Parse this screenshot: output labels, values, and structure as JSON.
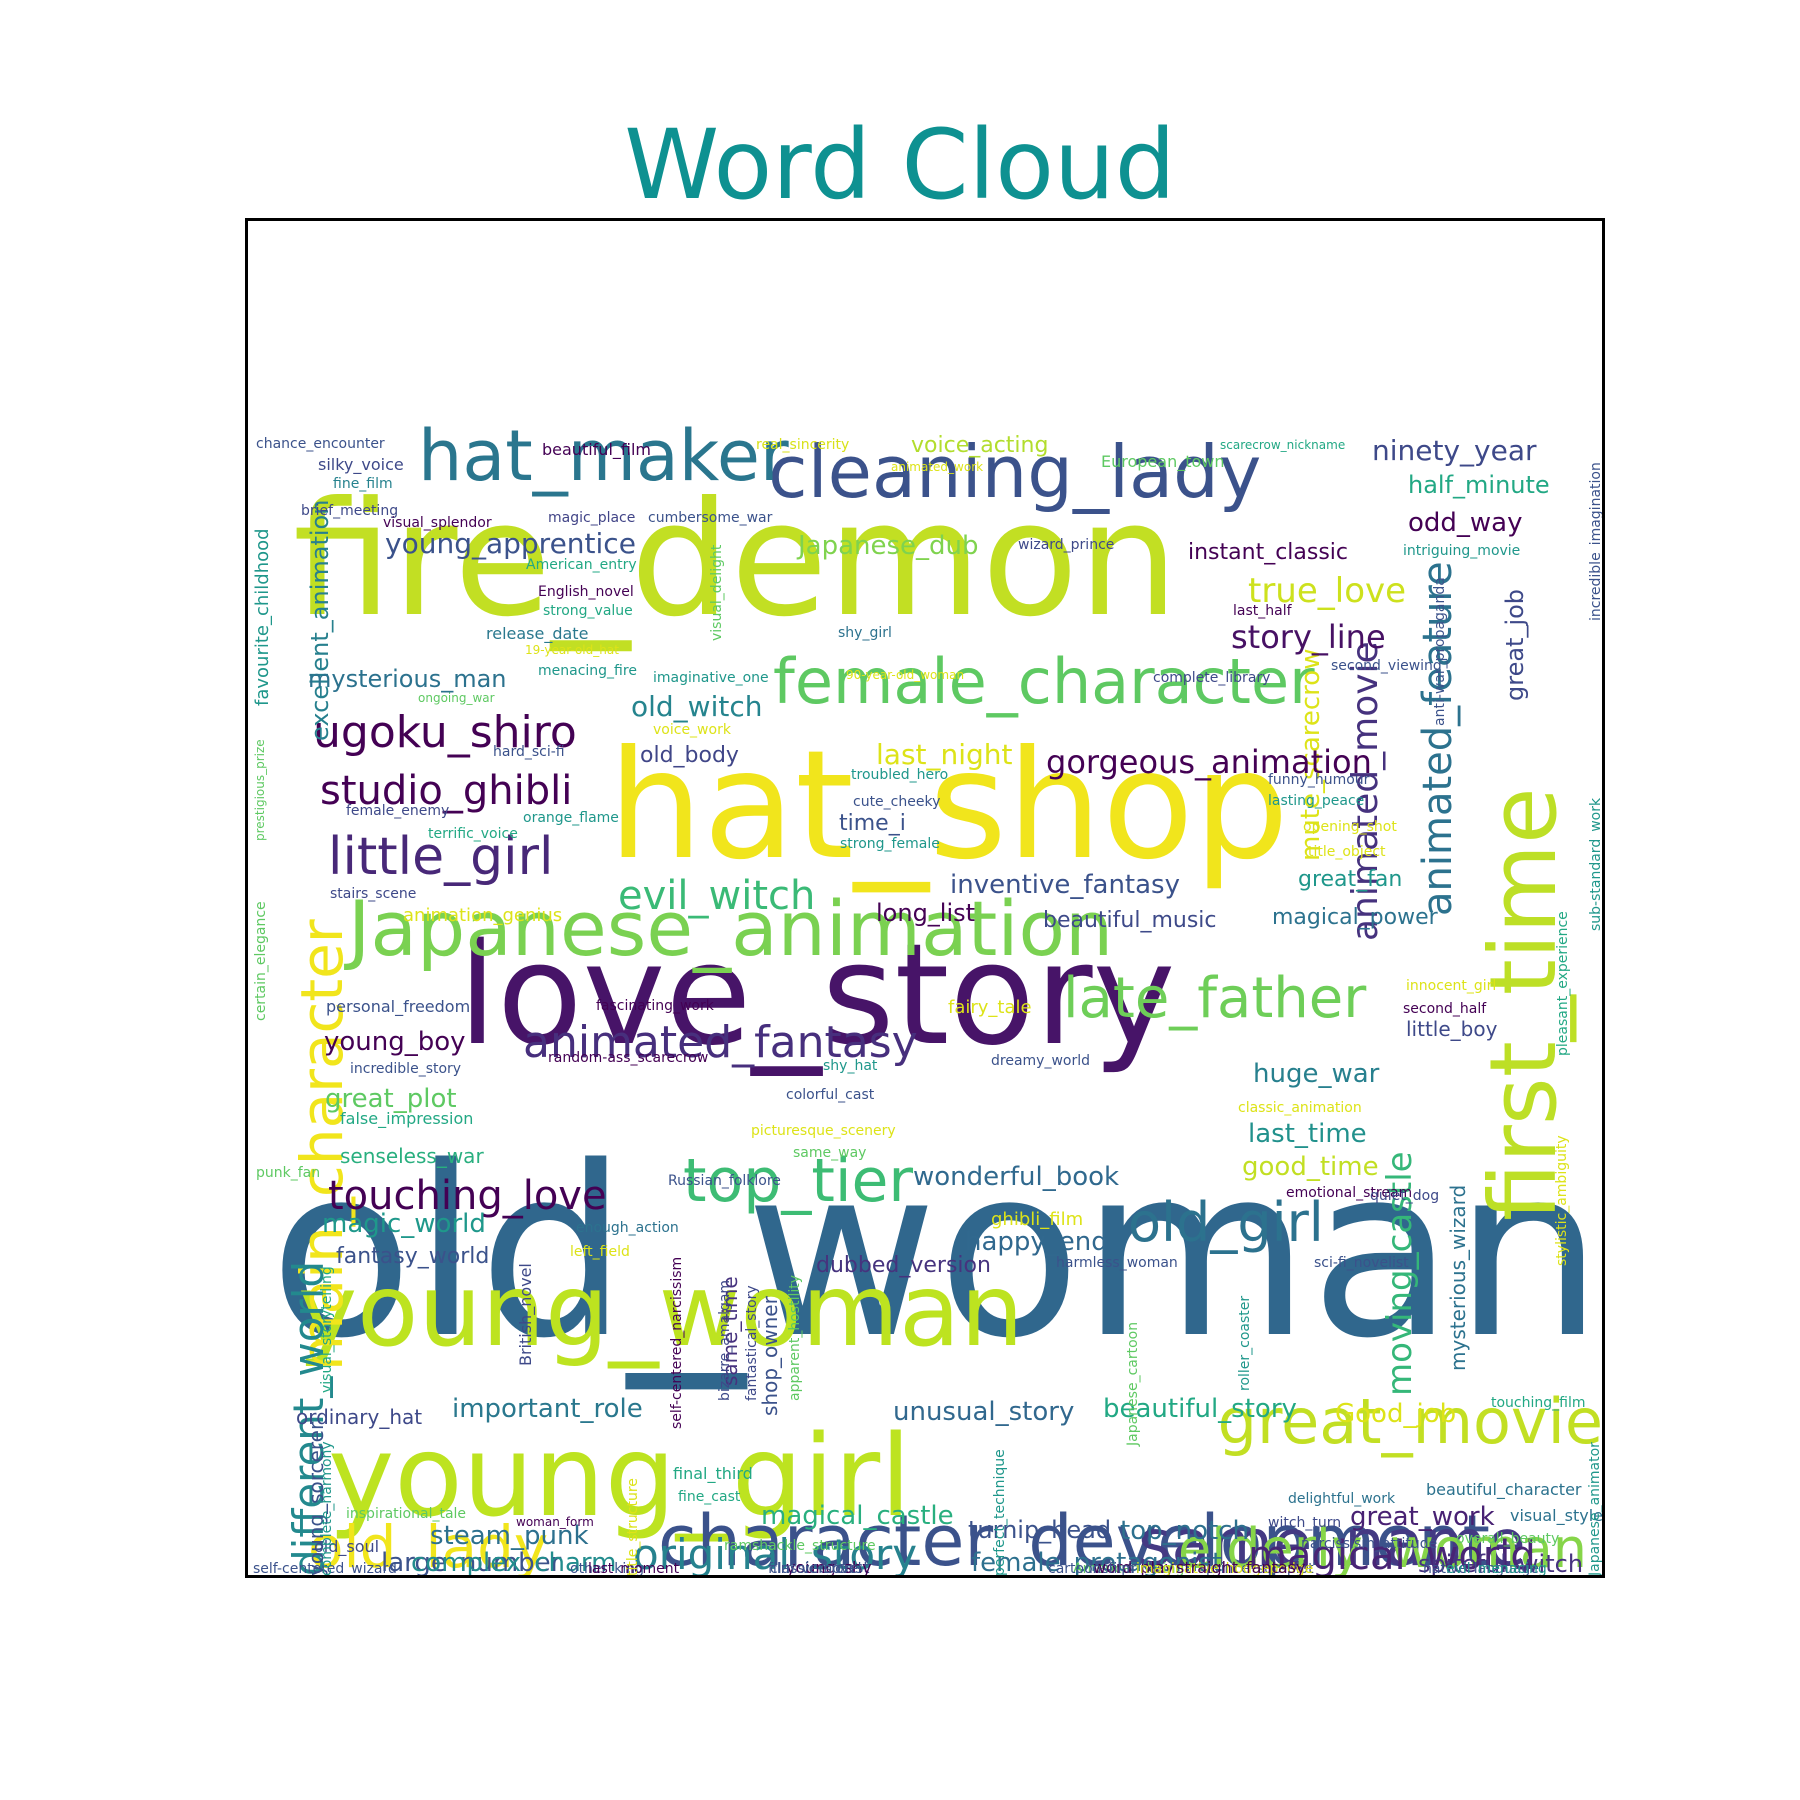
{
  "chart_data": {
    "type": "wordcloud",
    "title": "Word Cloud",
    "words": [
      {
        "text": "old_woman",
        "color": "#30678d"
      },
      {
        "text": "love_story",
        "color": "#471468"
      },
      {
        "text": "fire_demon",
        "color": "#c2df23"
      },
      {
        "text": "hat_shop",
        "color": "#f1e51c"
      },
      {
        "text": "young_woman",
        "color": "#bde320"
      },
      {
        "text": "young_girl",
        "color": "#bde320"
      },
      {
        "text": "Japanese_animation",
        "color": "#7ad151"
      },
      {
        "text": "first_time",
        "color": "#bddf26"
      },
      {
        "text": "cleaning_lady",
        "color": "#3b528b"
      },
      {
        "text": "character_development",
        "color": "#3b528b"
      },
      {
        "text": "main_character",
        "color": "#f1e51c"
      },
      {
        "text": "hat_maker",
        "color": "#2a768e"
      },
      {
        "text": "female_character",
        "color": "#5ec962"
      },
      {
        "text": "great_movie",
        "color": "#c2df23"
      },
      {
        "text": "same_name",
        "color": "#443983"
      },
      {
        "text": "elderly_woman",
        "color": "#86d549"
      },
      {
        "text": "old_lady",
        "color": "#f1e51c"
      },
      {
        "text": "top_tier",
        "color": "#3dbc74"
      },
      {
        "text": "late_father",
        "color": "#6ece58"
      },
      {
        "text": "old_girl",
        "color": "#2c728e"
      },
      {
        "text": "animated_feature",
        "color": "#2c728e"
      },
      {
        "text": "little_girl",
        "color": "#482878"
      },
      {
        "text": "animated_fantasy",
        "color": "#472f7d"
      },
      {
        "text": "different_world",
        "color": "#23898e"
      },
      {
        "text": "ugoku_shiro",
        "color": "#440154"
      },
      {
        "text": "studio_ghibli",
        "color": "#440154"
      },
      {
        "text": "original_story",
        "color": "#26828e"
      },
      {
        "text": "magical_world",
        "color": "#482475"
      },
      {
        "text": "evil_witch",
        "color": "#3aba76"
      },
      {
        "text": "touching_love",
        "color": "#440154"
      },
      {
        "text": "animated_movie",
        "color": "#46327e"
      },
      {
        "text": "moving_castle",
        "color": "#35b779"
      },
      {
        "text": "excellent_animation",
        "color": "#27808e"
      },
      {
        "text": "mute_scarecrow",
        "color": "#dde318"
      },
      {
        "text": "gorgeous_animation",
        "color": "#440154"
      },
      {
        "text": "true_love",
        "color": "#cde11d"
      },
      {
        "text": "young_apprentice",
        "color": "#3b528b"
      },
      {
        "text": "story_line",
        "color": "#471164"
      },
      {
        "text": "ninety_year",
        "color": "#3e4989"
      },
      {
        "text": "old_witch",
        "color": "#25848e"
      },
      {
        "text": "inventive_fantasy",
        "color": "#3b528b"
      },
      {
        "text": "last_night",
        "color": "#dde318"
      },
      {
        "text": "Japanese_dub",
        "color": "#7fd34e"
      },
      {
        "text": "important_role",
        "color": "#2a788e"
      },
      {
        "text": "unusual_story",
        "color": "#31688e"
      },
      {
        "text": "beautiful_story",
        "color": "#22a884"
      },
      {
        "text": "Good_job",
        "color": "#dde318"
      },
      {
        "text": "magic_world",
        "color": "#1f988b"
      },
      {
        "text": "great_plot",
        "color": "#5ec962"
      },
      {
        "text": "young_boy",
        "color": "#440154"
      },
      {
        "text": "huge_war",
        "color": "#27808e"
      },
      {
        "text": "last_time",
        "color": "#21918c"
      },
      {
        "text": "good_time",
        "color": "#c2df23"
      },
      {
        "text": "happy_end",
        "color": "#31688e"
      },
      {
        "text": "wonderful_book",
        "color": "#30698e"
      },
      {
        "text": "steam_punk",
        "color": "#2d708e"
      },
      {
        "text": "magical_castle",
        "color": "#29af7f"
      },
      {
        "text": "top_notch",
        "color": "#2d708e"
      },
      {
        "text": "great_work",
        "color": "#482173"
      },
      {
        "text": "spiteful_witch",
        "color": "#46337f"
      },
      {
        "text": "large_number",
        "color": "#3b528b"
      },
      {
        "text": "complex_charm",
        "color": "#228c8d"
      },
      {
        "text": "female_protagonist",
        "color": "#2d708e"
      },
      {
        "text": "odd_way",
        "color": "#440154"
      },
      {
        "text": "half_minute",
        "color": "#22a884"
      },
      {
        "text": "instant_classic",
        "color": "#440154"
      },
      {
        "text": "great_job",
        "color": "#3e4989"
      },
      {
        "text": "mysterious_man",
        "color": "#2c728e"
      },
      {
        "text": "old_body",
        "color": "#404688"
      },
      {
        "text": "time_i",
        "color": "#3b528b"
      },
      {
        "text": "long_list",
        "color": "#440154"
      },
      {
        "text": "beautiful_music",
        "color": "#3e4a89"
      },
      {
        "text": "magical_power",
        "color": "#2c728e"
      },
      {
        "text": "great_fan",
        "color": "#1f978b"
      },
      {
        "text": "senseless_war",
        "color": "#29af7f"
      },
      {
        "text": "dubbed_version",
        "color": "#46337e"
      },
      {
        "text": "fantasy_world",
        "color": "#3b528b"
      },
      {
        "text": "ordinary_hat",
        "color": "#3e4989"
      },
      {
        "text": "turnip_head",
        "color": "#3b528b"
      },
      {
        "text": "young_sorcerer",
        "color": "#3b528b"
      },
      {
        "text": "mysterious_wizard",
        "color": "#2c728e"
      },
      {
        "text": "shop_owner",
        "color": "#3b528b"
      },
      {
        "text": "same_time",
        "color": "#46327e"
      },
      {
        "text": "voice_acting",
        "color": "#b2dd2d"
      },
      {
        "text": "beautiful_film",
        "color": "#440154"
      },
      {
        "text": "real_sincerity",
        "color": "#d8e219"
      },
      {
        "text": "chance_encounter",
        "color": "#3b528b"
      },
      {
        "text": "silky_voice",
        "color": "#3e4989"
      },
      {
        "text": "fine_film",
        "color": "#26828e"
      },
      {
        "text": "brief_meeting",
        "color": "#3e4989"
      },
      {
        "text": "visual_splendor",
        "color": "#440154"
      },
      {
        "text": "magic_place",
        "color": "#414487"
      },
      {
        "text": "cumbersome_war",
        "color": "#3b528b"
      },
      {
        "text": "animated_work",
        "color": "#dde318"
      },
      {
        "text": "European_town",
        "color": "#5ec962"
      },
      {
        "text": "scarecrow_nickname",
        "color": "#22a884"
      },
      {
        "text": "wizard_prince",
        "color": "#3e4989"
      },
      {
        "text": "intriguing_movie",
        "color": "#1f978b"
      },
      {
        "text": "American_entry",
        "color": "#22a884"
      },
      {
        "text": "English_novel",
        "color": "#440154"
      },
      {
        "text": "strong_value",
        "color": "#22a884"
      },
      {
        "text": "release_date",
        "color": "#2a788e"
      },
      {
        "text": "19-year-old_hat",
        "color": "#dde318"
      },
      {
        "text": "menacing_fire",
        "color": "#1f978b"
      },
      {
        "text": "imaginative_one",
        "color": "#1f978b"
      },
      {
        "text": "90-year-old_woman",
        "color": "#dde318"
      },
      {
        "text": "complete_library",
        "color": "#3e4989"
      },
      {
        "text": "second_viewing",
        "color": "#3b528b"
      },
      {
        "text": "last_half",
        "color": "#440154"
      },
      {
        "text": "shy_girl",
        "color": "#2c728e"
      },
      {
        "text": "ongoing_war",
        "color": "#5ec962"
      },
      {
        "text": "voice_work",
        "color": "#dde318"
      },
      {
        "text": "hard_sci-fi",
        "color": "#3b528b"
      },
      {
        "text": "troubled_hero",
        "color": "#1f978b"
      },
      {
        "text": "cute_cheeky",
        "color": "#3b528b"
      },
      {
        "text": "strong_female",
        "color": "#1f978b"
      },
      {
        "text": "funny_humour",
        "color": "#3b528b"
      },
      {
        "text": "lasting_peace",
        "color": "#1f978b"
      },
      {
        "text": "opening_shot",
        "color": "#dde318"
      },
      {
        "text": "title_object",
        "color": "#dde318"
      },
      {
        "text": "female_enemy",
        "color": "#3e4989"
      },
      {
        "text": "orange_flame",
        "color": "#1f978b"
      },
      {
        "text": "terrific_voice",
        "color": "#22a884"
      },
      {
        "text": "stairs_scene",
        "color": "#3e4989"
      },
      {
        "text": "animation_genius",
        "color": "#dde318"
      },
      {
        "text": "fascinating_work",
        "color": "#440154"
      },
      {
        "text": "personal_freedom",
        "color": "#3b528b"
      },
      {
        "text": "fairy_tale",
        "color": "#dde318"
      },
      {
        "text": "innocent_girl",
        "color": "#dde318"
      },
      {
        "text": "second_half",
        "color": "#440154"
      },
      {
        "text": "little_boy",
        "color": "#3e4989"
      },
      {
        "text": "incredible_story",
        "color": "#3b528b"
      },
      {
        "text": "random-ass_scarecrow",
        "color": "#440154"
      },
      {
        "text": "shy_hat",
        "color": "#1f978b"
      },
      {
        "text": "dreamy_world",
        "color": "#3b528b"
      },
      {
        "text": "colorful_cast",
        "color": "#3b528b"
      },
      {
        "text": "false_impression",
        "color": "#22a884"
      },
      {
        "text": "classic_animation",
        "color": "#dde318"
      },
      {
        "text": "picturesque_scenery",
        "color": "#dde318"
      },
      {
        "text": "same_way",
        "color": "#5ec962"
      },
      {
        "text": "punk_fan",
        "color": "#5ec962"
      },
      {
        "text": "Russian_folklore",
        "color": "#3b528b"
      },
      {
        "text": "emotional_stream",
        "color": "#440154"
      },
      {
        "text": "quiet_dog",
        "color": "#3e4989"
      },
      {
        "text": "ghibli_film",
        "color": "#dde318"
      },
      {
        "text": "enough_action",
        "color": "#2c728e"
      },
      {
        "text": "left_field",
        "color": "#dde318"
      },
      {
        "text": "harmless_woman",
        "color": "#3b528b"
      },
      {
        "text": "sci-fi_novelist",
        "color": "#3b528b"
      },
      {
        "text": "touching_film",
        "color": "#22a884"
      },
      {
        "text": "final_third",
        "color": "#22a884"
      },
      {
        "text": "fine_cast",
        "color": "#22a884"
      },
      {
        "text": "inspirational_tale",
        "color": "#5ec962"
      },
      {
        "text": "woman_form",
        "color": "#440154"
      },
      {
        "text": "witch_turn",
        "color": "#3e4989"
      },
      {
        "text": "delightful_work",
        "color": "#2c728e"
      },
      {
        "text": "beautiful_character",
        "color": "#2c728e"
      },
      {
        "text": "visual_style",
        "color": "#2c728e"
      },
      {
        "text": "old_soul",
        "color": "#3e4989"
      },
      {
        "text": "ramshackle_structure",
        "color": "#5ec962"
      },
      {
        "text": "narcissism_attitude",
        "color": "#3b528b"
      },
      {
        "text": "overall_beauty",
        "color": "#5ec962"
      },
      {
        "text": "prince_sub-plot",
        "color": "#3b528b"
      },
      {
        "text": "American_living",
        "color": "#5ec962"
      },
      {
        "text": "lost_prince",
        "color": "#3b528b"
      },
      {
        "text": "other_king",
        "color": "#3b528b"
      },
      {
        "text": "voice_cast",
        "color": "#3b528b"
      },
      {
        "text": "word_play",
        "color": "#440154"
      },
      {
        "text": "imaginative_hodgepodge",
        "color": "#dde318"
      },
      {
        "text": "native_language",
        "color": "#3b528b"
      },
      {
        "text": "young_shy",
        "color": "#440154"
      },
      {
        "text": "classic_novel",
        "color": "#3b528b"
      },
      {
        "text": "last_moment",
        "color": "#440154"
      },
      {
        "text": "straight_fantasy",
        "color": "#440154"
      },
      {
        "text": "evil_menacing",
        "color": "#1f978b"
      },
      {
        "text": "cartoon_film",
        "color": "#3b528b"
      },
      {
        "text": "self-centered_wizard",
        "color": "#3b528b"
      },
      {
        "text": "film_version",
        "color": "#3b528b"
      },
      {
        "text": "favourite_childhood",
        "color": "#1f978b"
      },
      {
        "text": "prestigious_prize",
        "color": "#5ec962"
      },
      {
        "text": "certain_elegance",
        "color": "#5ec962"
      },
      {
        "text": "visual_storytelling",
        "color": "#22a884"
      },
      {
        "text": "complete_harmony",
        "color": "#1f978b"
      },
      {
        "text": "title_structure",
        "color": "#dde318"
      },
      {
        "text": "British_novel",
        "color": "#3e4989"
      },
      {
        "text": "self-centered_narcissism",
        "color": "#440154"
      },
      {
        "text": "bizarre_amalgam",
        "color": "#3e4989"
      },
      {
        "text": "fantastical_story",
        "color": "#3e4989"
      },
      {
        "text": "apparent_hostility",
        "color": "#5ec962"
      },
      {
        "text": "visual_delight",
        "color": "#5ec962"
      },
      {
        "text": "Japanese_cartoon",
        "color": "#5ec962"
      },
      {
        "text": "roller_coaster",
        "color": "#1f978b"
      },
      {
        "text": "perfect_technique",
        "color": "#1f978b"
      },
      {
        "text": "anti-war_propaganda",
        "color": "#3b528b"
      },
      {
        "text": "incredible_imagination",
        "color": "#3b528b"
      },
      {
        "text": "pleasant_experience",
        "color": "#22a884"
      },
      {
        "text": "sub-standard_work",
        "color": "#1f978b"
      },
      {
        "text": "stylistic_ambiguity",
        "color": "#dde318"
      },
      {
        "text": "Japanese_animator",
        "color": "#1f978b"
      }
    ]
  }
}
